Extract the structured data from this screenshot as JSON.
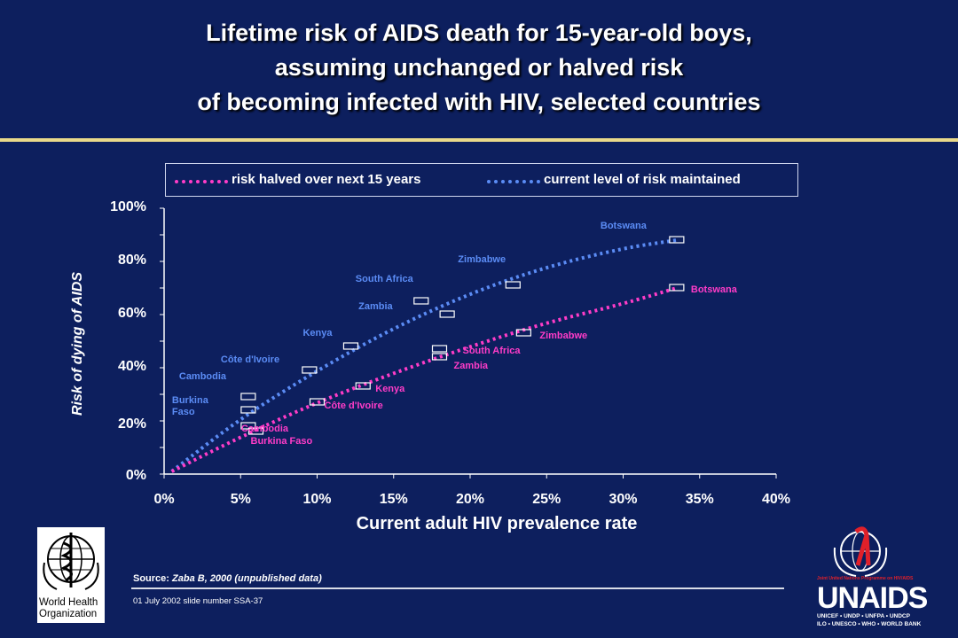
{
  "title": {
    "line1": "Lifetime risk of AIDS death for 15-year-old boys,",
    "line2": "assuming unchanged or halved risk",
    "line3": "of becoming infected with HIV, selected countries"
  },
  "legend": {
    "halved": "risk halved over next 15 years",
    "current": "current level of risk maintained"
  },
  "colors": {
    "background": "#0d1f5e",
    "halved": "#ff3cc8",
    "current": "#5b8cf5",
    "rule": "#e9d98a"
  },
  "chart_data": {
    "type": "scatter",
    "xlabel": "Current adult HIV prevalence rate",
    "ylabel": "Risk of dying of AIDS",
    "xlim": [
      0,
      40
    ],
    "ylim": [
      0,
      100
    ],
    "x_ticks": [
      "0%",
      "5%",
      "10%",
      "15%",
      "20%",
      "25%",
      "30%",
      "35%",
      "40%"
    ],
    "y_ticks": [
      "0%",
      "20%",
      "40%",
      "60%",
      "80%",
      "100%"
    ],
    "grid": false,
    "series": [
      {
        "name": "current level of risk maintained",
        "color": "#5b8cf5",
        "points": [
          {
            "label": "Burkina Faso",
            "x": 5.5,
            "y": 24
          },
          {
            "label": "Cambodia",
            "x": 5.5,
            "y": 29
          },
          {
            "label": "Côte d'Ivoire",
            "x": 9.5,
            "y": 39
          },
          {
            "label": "Kenya",
            "x": 12.2,
            "y": 48
          },
          {
            "label": "South Africa",
            "x": 16.8,
            "y": 65
          },
          {
            "label": "Zambia",
            "x": 18.5,
            "y": 60
          },
          {
            "label": "Zimbabwe",
            "x": 22.8,
            "y": 71
          },
          {
            "label": "Botswana",
            "x": 33.5,
            "y": 88
          }
        ],
        "curve": [
          [
            0.5,
            1
          ],
          [
            5,
            21
          ],
          [
            10,
            39
          ],
          [
            15,
            55
          ],
          [
            20,
            68
          ],
          [
            25,
            78
          ],
          [
            30,
            85
          ],
          [
            33.5,
            88
          ]
        ]
      },
      {
        "name": "risk halved over next 15 years",
        "color": "#ff3cc8",
        "points": [
          {
            "label": "Burkina Faso",
            "x": 6,
            "y": 16
          },
          {
            "label": "Cambodia",
            "x": 5.5,
            "y": 18
          },
          {
            "label": "Côte d'Ivoire",
            "x": 10,
            "y": 27
          },
          {
            "label": "Kenya",
            "x": 13,
            "y": 33
          },
          {
            "label": "South Africa",
            "x": 18,
            "y": 47
          },
          {
            "label": "Zambia",
            "x": 18,
            "y": 44
          },
          {
            "label": "Zimbabwe",
            "x": 23.5,
            "y": 53
          },
          {
            "label": "Botswana",
            "x": 33.5,
            "y": 70
          }
        ],
        "curve": [
          [
            0.5,
            1
          ],
          [
            5,
            14
          ],
          [
            10,
            27
          ],
          [
            15,
            38
          ],
          [
            20,
            48
          ],
          [
            25,
            57
          ],
          [
            30,
            64
          ],
          [
            33.5,
            70
          ]
        ]
      }
    ]
  },
  "footer": {
    "source_label": "Source:",
    "source_text": "Zaba B, 2000 (unpublished data)",
    "slide_number": "01 July 2002 slide number SSA-37",
    "who_caption_1": "World Health",
    "who_caption_2": "Organization",
    "unaids_text": "UNAIDS",
    "unaids_sub_1": "UNICEF • UNDP • UNFPA • UNDCP",
    "unaids_sub_2": "ILO • UNESCO • WHO • WORLD BANK",
    "unaids_top": "Joint United Nations Programme on HIV/AIDS"
  }
}
